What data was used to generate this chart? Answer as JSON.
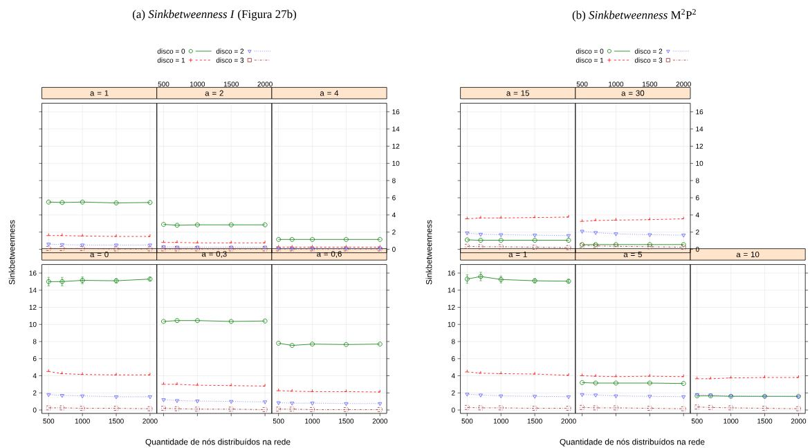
{
  "chart_data": [
    {
      "type": "other",
      "title": "(a) *Sinkbetweenness I* (Figura 27b)"
    },
    {
      "type": "line",
      "title": "a = 1",
      "x": [
        500,
        700,
        1000,
        1500,
        2000
      ],
      "xlim": [
        400,
        2100
      ],
      "ylim": [
        -0.4,
        17
      ],
      "xticks": [
        500,
        1000,
        1500,
        2000
      ],
      "yticks": [
        0,
        2,
        4,
        6,
        8,
        10,
        12,
        14,
        16
      ],
      "grid": true,
      "tick_labels": false,
      "series": [
        {
          "color": "#008000",
          "marker": "circle",
          "line_style": "solid",
          "values": [
            5.5,
            5.45,
            5.5,
            5.4,
            5.45
          ]
        },
        {
          "color": "#ff0000",
          "marker": "cross",
          "line_style": "dashed",
          "values": [
            1.6,
            1.6,
            1.55,
            1.5,
            1.5
          ]
        },
        {
          "color": "#5a5aff",
          "marker": "triangle",
          "line_style": "dotted",
          "values": [
            0.6,
            0.55,
            0.5,
            0.5,
            0.5
          ]
        },
        {
          "color": "#a52a2a",
          "marker": "square",
          "line_style": "dashdot",
          "values": [
            0.1,
            0.1,
            0.1,
            0.05,
            0.05
          ]
        }
      ]
    },
    {
      "type": "line",
      "title": "a = 2",
      "x": [
        500,
        700,
        1000,
        1500,
        2000
      ],
      "xlim": [
        400,
        2100
      ],
      "ylim": [
        -0.4,
        17
      ],
      "xticks": [
        500,
        1000,
        1500,
        2000
      ],
      "yticks": [
        0,
        2,
        4,
        6,
        8,
        10,
        12,
        14,
        16
      ],
      "grid": true,
      "legend": "top",
      "tick_labels": "x",
      "series": [
        {
          "name": "disco = 0",
          "color": "#008000",
          "marker": "circle",
          "line_style": "solid",
          "values": [
            2.9,
            2.8,
            2.85,
            2.85,
            2.85
          ]
        },
        {
          "name": "disco = 1",
          "color": "#ff0000",
          "marker": "cross",
          "line_style": "dashed",
          "values": [
            0.8,
            0.8,
            0.75,
            0.75,
            0.75
          ]
        },
        {
          "name": "disco = 2",
          "color": "#5a5aff",
          "marker": "triangle",
          "line_style": "dotted",
          "values": [
            0.3,
            0.25,
            0.25,
            0.25,
            0.25
          ]
        },
        {
          "name": "disco = 3",
          "color": "#a52a2a",
          "marker": "square",
          "line_style": "dashdot",
          "values": [
            0.05,
            0.05,
            0.05,
            0.05,
            0.05
          ]
        }
      ]
    },
    {
      "type": "line",
      "title": "a = 4",
      "x": [
        500,
        700,
        1000,
        1500,
        2000
      ],
      "xlim": [
        400,
        2100
      ],
      "ylim": [
        -0.4,
        17
      ],
      "xticks": [
        500,
        1000,
        1500,
        2000
      ],
      "yticks": [
        0,
        2,
        4,
        6,
        8,
        10,
        12,
        14,
        16
      ],
      "grid": true,
      "tick_labels": "y",
      "series": [
        {
          "color": "#008000",
          "marker": "circle",
          "line_style": "solid",
          "values": [
            1.15,
            1.15,
            1.15,
            1.15,
            1.15
          ]
        },
        {
          "color": "#ff0000",
          "marker": "cross",
          "line_style": "dashed",
          "values": [
            0.25,
            0.25,
            0.25,
            0.25,
            0.25
          ]
        },
        {
          "color": "#5a5aff",
          "marker": "triangle",
          "line_style": "dotted",
          "values": [
            0.1,
            0.1,
            0.1,
            0.1,
            0.1
          ]
        },
        {
          "color": "#a52a2a",
          "marker": "square",
          "line_style": "dashdot",
          "values": [
            0.05,
            0.05,
            0.05,
            0.05,
            0.05
          ]
        }
      ]
    },
    {
      "type": "line",
      "title": "a = 0",
      "x": [
        500,
        700,
        1000,
        1500,
        2000
      ],
      "xlim": [
        400,
        2100
      ],
      "ylim": [
        -0.4,
        17
      ],
      "xticks": [
        500,
        1000,
        1500,
        2000
      ],
      "yticks": [
        0,
        2,
        4,
        6,
        8,
        10,
        12,
        14,
        16
      ],
      "grid": true,
      "series": [
        {
          "color": "#008000",
          "marker": "circle",
          "line_style": "solid",
          "values": [
            15.0,
            15.0,
            15.15,
            15.1,
            15.3
          ],
          "errors": [
            0.5,
            0.5,
            0.4,
            0.25,
            0.2
          ]
        },
        {
          "color": "#ff0000",
          "marker": "cross",
          "line_style": "dashed",
          "values": [
            4.5,
            4.25,
            4.15,
            4.1,
            4.1
          ]
        },
        {
          "color": "#5a5aff",
          "marker": "triangle",
          "line_style": "dotted",
          "values": [
            1.8,
            1.7,
            1.65,
            1.55,
            1.55
          ]
        },
        {
          "color": "#a52a2a",
          "marker": "square",
          "line_style": "dashdot",
          "values": [
            0.25,
            0.25,
            0.2,
            0.2,
            0.15
          ]
        }
      ]
    },
    {
      "type": "line",
      "title": "a = 0,3",
      "x": [
        500,
        700,
        1000,
        1500,
        2000
      ],
      "xlim": [
        400,
        2100
      ],
      "ylim": [
        -0.4,
        17
      ],
      "xticks": [
        500,
        1000,
        1500,
        2000
      ],
      "yticks": [
        0,
        2,
        4,
        6,
        8,
        10,
        12,
        14,
        16
      ],
      "grid": true,
      "tick_labels": false,
      "series": [
        {
          "color": "#008000",
          "marker": "circle",
          "line_style": "solid",
          "values": [
            10.35,
            10.45,
            10.45,
            10.35,
            10.4
          ]
        },
        {
          "color": "#ff0000",
          "marker": "cross",
          "line_style": "dashed",
          "values": [
            3.0,
            3.0,
            2.9,
            2.85,
            2.8
          ]
        },
        {
          "color": "#5a5aff",
          "marker": "triangle",
          "line_style": "dotted",
          "values": [
            1.2,
            1.1,
            1.05,
            1.0,
            0.95
          ]
        },
        {
          "color": "#a52a2a",
          "marker": "square",
          "line_style": "dashdot",
          "values": [
            0.2,
            0.15,
            0.1,
            0.1,
            0.05
          ]
        }
      ]
    },
    {
      "type": "line",
      "title": "a = 0,6",
      "x": [
        500,
        700,
        1000,
        1500,
        2000
      ],
      "xlim": [
        400,
        2100
      ],
      "ylim": [
        -0.4,
        17
      ],
      "xticks": [
        500,
        1000,
        1500,
        2000
      ],
      "yticks": [
        0,
        2,
        4,
        6,
        8,
        10,
        12,
        14,
        16
      ],
      "grid": true,
      "tick_labels": "x",
      "series": [
        {
          "color": "#008000",
          "marker": "circle",
          "line_style": "solid",
          "values": [
            7.8,
            7.55,
            7.7,
            7.65,
            7.7
          ]
        },
        {
          "color": "#ff0000",
          "marker": "cross",
          "line_style": "dashed",
          "values": [
            2.25,
            2.2,
            2.15,
            2.15,
            2.1
          ]
        },
        {
          "color": "#5a5aff",
          "marker": "triangle",
          "line_style": "dotted",
          "values": [
            0.85,
            0.8,
            0.8,
            0.75,
            0.75
          ]
        },
        {
          "color": "#a52a2a",
          "marker": "square",
          "line_style": "dashdot",
          "values": [
            0.1,
            0.1,
            0.05,
            0.05,
            0.05
          ]
        }
      ]
    },
    {
      "type": "other",
      "ylabel": "Sinkbetweenness"
    },
    {
      "type": "other",
      "xlabel": "Quantidade de nós distribuídos na rede"
    },
    {
      "type": "other",
      "title": "(b) *Sinkbetweenness* M$^{2}$P$^{2}$"
    },
    {
      "type": "line",
      "title": "a = 15",
      "x": [
        500,
        700,
        1000,
        1500,
        2000
      ],
      "xlim": [
        400,
        2100
      ],
      "ylim": [
        -0.4,
        17
      ],
      "xticks": [
        500,
        1000,
        1500,
        2000
      ],
      "yticks": [
        0,
        2,
        4,
        6,
        8,
        10,
        12,
        14,
        16
      ],
      "grid": true,
      "tick_labels": false,
      "series": [
        {
          "color": "#008000",
          "marker": "circle",
          "line_style": "solid",
          "values": [
            1.1,
            1.05,
            1.05,
            1.05,
            1.05
          ]
        },
        {
          "color": "#ff0000",
          "marker": "cross",
          "line_style": "dashed",
          "values": [
            3.55,
            3.65,
            3.65,
            3.7,
            3.75
          ]
        },
        {
          "color": "#5a5aff",
          "marker": "triangle",
          "line_style": "dotted",
          "values": [
            1.9,
            1.75,
            1.7,
            1.65,
            1.6
          ]
        },
        {
          "color": "#a52a2a",
          "marker": "square",
          "line_style": "dashdot",
          "values": [
            0.35,
            0.3,
            0.3,
            0.25,
            0.2
          ]
        }
      ]
    },
    {
      "type": "line",
      "title": "a = 30",
      "x": [
        500,
        700,
        1000,
        1500,
        2000
      ],
      "xlim": [
        400,
        2100
      ],
      "ylim": [
        -0.4,
        17
      ],
      "xticks": [
        500,
        1000,
        1500,
        2000
      ],
      "yticks": [
        0,
        2,
        4,
        6,
        8,
        10,
        12,
        14,
        16
      ],
      "grid": true,
      "legend": "top",
      "series": [
        {
          "name": "disco = 0",
          "color": "#008000",
          "marker": "circle",
          "line_style": "solid",
          "values": [
            0.55,
            0.55,
            0.55,
            0.55,
            0.55
          ]
        },
        {
          "name": "disco = 1",
          "color": "#ff0000",
          "marker": "cross",
          "line_style": "dashed",
          "values": [
            3.25,
            3.35,
            3.4,
            3.45,
            3.55
          ]
        },
        {
          "name": "disco = 2",
          "color": "#5a5aff",
          "marker": "triangle",
          "line_style": "dotted",
          "values": [
            2.1,
            1.95,
            1.8,
            1.7,
            1.65
          ]
        },
        {
          "name": "disco = 3",
          "color": "#a52a2a",
          "marker": "square",
          "line_style": "dashdot",
          "values": [
            0.45,
            0.4,
            0.35,
            0.3,
            0.25
          ]
        }
      ]
    },
    {
      "type": "line",
      "title": "a = 1",
      "x": [
        500,
        700,
        1000,
        1500,
        2000
      ],
      "xlim": [
        400,
        2100
      ],
      "ylim": [
        -0.4,
        17
      ],
      "xticks": [
        500,
        1000,
        1500,
        2000
      ],
      "yticks": [
        0,
        2,
        4,
        6,
        8,
        10,
        12,
        14,
        16
      ],
      "grid": true,
      "series": [
        {
          "color": "#008000",
          "marker": "circle",
          "line_style": "solid",
          "values": [
            15.3,
            15.6,
            15.25,
            15.1,
            15.05
          ],
          "errors": [
            0.5,
            0.5,
            0.4,
            0.25,
            0.2
          ]
        },
        {
          "color": "#ff0000",
          "marker": "cross",
          "line_style": "dashed",
          "values": [
            4.45,
            4.3,
            4.25,
            4.2,
            4.05
          ]
        },
        {
          "color": "#5a5aff",
          "marker": "triangle",
          "line_style": "dotted",
          "values": [
            1.85,
            1.75,
            1.65,
            1.6,
            1.55
          ]
        },
        {
          "color": "#a52a2a",
          "marker": "square",
          "line_style": "dashdot",
          "values": [
            0.3,
            0.25,
            0.25,
            0.2,
            0.2
          ]
        }
      ]
    },
    {
      "type": "line",
      "title": "a = 5",
      "x": [
        500,
        700,
        1000,
        1500,
        2000
      ],
      "xlim": [
        400,
        2100
      ],
      "ylim": [
        -0.4,
        17
      ],
      "xticks": [
        500,
        1000,
        1500,
        2000
      ],
      "yticks": [
        0,
        2,
        4,
        6,
        8,
        10,
        12,
        14,
        16
      ],
      "grid": true,
      "tick_labels": false,
      "series": [
        {
          "color": "#008000",
          "marker": "circle",
          "line_style": "solid",
          "values": [
            3.2,
            3.15,
            3.15,
            3.15,
            3.1
          ]
        },
        {
          "color": "#ff0000",
          "marker": "cross",
          "line_style": "dashed",
          "values": [
            4.0,
            3.95,
            3.9,
            3.95,
            3.9
          ]
        },
        {
          "color": "#5a5aff",
          "marker": "triangle",
          "line_style": "dotted",
          "values": [
            1.8,
            1.75,
            1.65,
            1.6,
            1.55
          ]
        },
        {
          "color": "#a52a2a",
          "marker": "square",
          "line_style": "dashdot",
          "values": [
            0.3,
            0.25,
            0.25,
            0.2,
            0.15
          ]
        }
      ]
    },
    {
      "type": "line",
      "title": "a = 10",
      "x": [
        500,
        700,
        1000,
        1500,
        2000
      ],
      "xlim": [
        400,
        2100
      ],
      "ylim": [
        -0.4,
        17
      ],
      "xticks": [
        500,
        1000,
        1500,
        2000
      ],
      "yticks": [
        0,
        2,
        4,
        6,
        8,
        10,
        12,
        14,
        16
      ],
      "grid": true,
      "tick_labels": "x",
      "series": [
        {
          "color": "#008000",
          "marker": "circle",
          "line_style": "solid",
          "values": [
            1.65,
            1.65,
            1.6,
            1.6,
            1.6
          ]
        },
        {
          "color": "#ff0000",
          "marker": "cross",
          "line_style": "dashed",
          "values": [
            3.65,
            3.65,
            3.75,
            3.8,
            3.8
          ]
        },
        {
          "color": "#5a5aff",
          "marker": "triangle",
          "line_style": "dotted",
          "values": [
            1.8,
            1.75,
            1.65,
            1.6,
            1.55
          ]
        },
        {
          "color": "#a52a2a",
          "marker": "square",
          "line_style": "dashdot",
          "values": [
            0.35,
            0.3,
            0.25,
            0.2,
            0.15
          ]
        }
      ]
    },
    {
      "type": "other",
      "ylabel": "Sinkbetweenness"
    },
    {
      "type": "other",
      "xlabel": "Quantidade de nós distribuídos na rede"
    }
  ]
}
